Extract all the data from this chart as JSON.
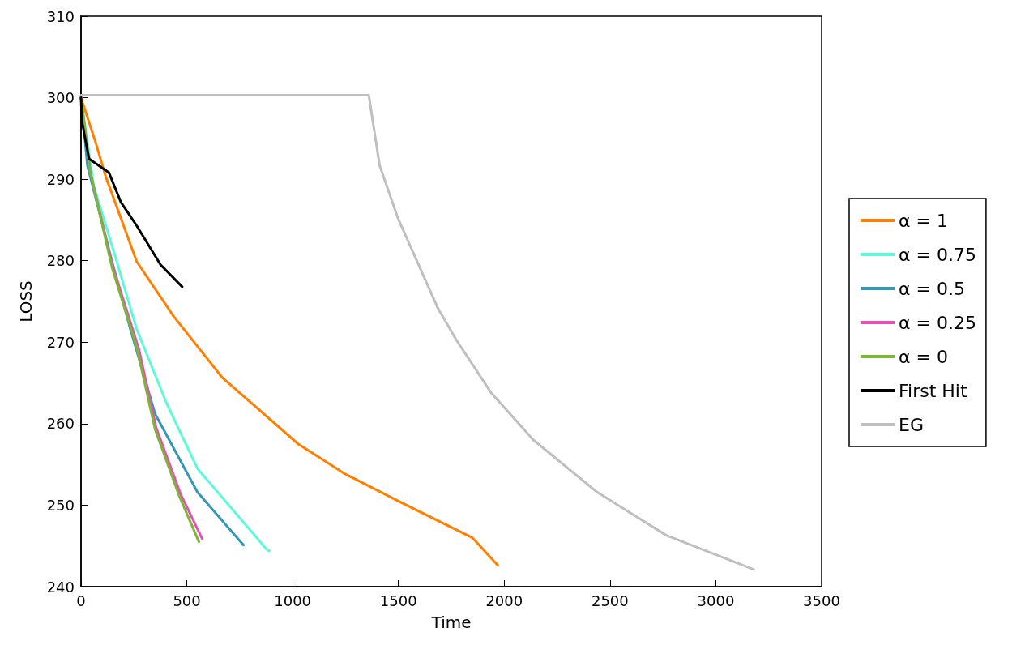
{
  "chart_data": {
    "type": "line",
    "xlabel": "Time",
    "ylabel": "LOSS",
    "xlim": [
      0,
      3500
    ],
    "xticks": [
      0,
      500,
      1000,
      1500,
      2000,
      2500,
      3000,
      3500
    ],
    "ylim": [
      240,
      310
    ],
    "yticks": [
      240,
      250,
      260,
      270,
      280,
      290,
      300,
      310
    ],
    "grid": false,
    "legend": "right",
    "marker": "none",
    "line_style": "solid",
    "series": [
      {
        "name": "α = 1",
        "color": "#ff7f00",
        "x": [
          0,
          68,
          117,
          263,
          437,
          666,
          1027,
          1250,
          1500,
          1850,
          1970
        ],
        "values": [
          300,
          294.6,
          290.3,
          279.9,
          273.2,
          265.7,
          257.5,
          253.8,
          250.5,
          246,
          242.6
        ]
      },
      {
        "name": "α = 0.75",
        "color": "#5cfad9",
        "x": [
          0,
          60,
          162,
          263,
          406,
          550,
          880,
          890
        ],
        "values": [
          300,
          289.2,
          280.5,
          271.6,
          262.4,
          254.5,
          244.5,
          244.4
        ]
      },
      {
        "name": "α = 0.5",
        "color": "#3497b8",
        "x": [
          0,
          30,
          132,
          233,
          350,
          550,
          768
        ],
        "values": [
          300,
          291.7,
          281.3,
          271.6,
          261.2,
          251.6,
          245.1
        ]
      },
      {
        "name": "α = 0.25",
        "color": "#e84fb5",
        "x": [
          0,
          45,
          150,
          273,
          355,
          470,
          572
        ],
        "values": [
          300,
          290.7,
          279.3,
          269.2,
          259.5,
          251.4,
          245.9
        ]
      },
      {
        "name": "α = 0",
        "color": "#7db535",
        "x": [
          0,
          45,
          147,
          263,
          350,
          463,
          557
        ],
        "values": [
          300,
          290.7,
          279.1,
          269.4,
          259.3,
          251.2,
          245.5
        ]
      },
      {
        "name": "First Hit",
        "color": "#000000",
        "x": [
          0,
          5,
          38,
          132,
          188,
          263,
          376,
          478
        ],
        "values": [
          300,
          297,
          292.5,
          290.8,
          287.2,
          284.3,
          279.5,
          276.8
        ]
      },
      {
        "name": "EG",
        "color": "#bfbfbf",
        "x": [
          0,
          1360,
          1411,
          1498,
          1585,
          1686,
          1773,
          1938,
          2138,
          2439,
          2766,
          3180
        ],
        "values": [
          300.3,
          300.3,
          291.7,
          285.2,
          280.1,
          274.2,
          270.3,
          263.8,
          258,
          251.6,
          246.3,
          242.1
        ]
      }
    ]
  }
}
